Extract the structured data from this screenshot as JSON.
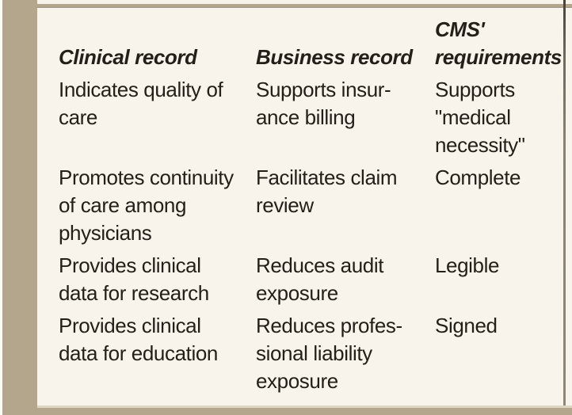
{
  "colors": {
    "page_background": "#f8f4eb",
    "margin_band": "#b3a68c",
    "text": "#242019",
    "page_edge_line": "#6e675c",
    "bottom_light_rule": "#ded6c5"
  },
  "table": {
    "headers": [
      {
        "lines": [
          "Clinical record"
        ]
      },
      {
        "lines": [
          "Business record"
        ]
      },
      {
        "lines": [
          "CMS'",
          "requirements"
        ]
      }
    ],
    "rows": [
      {
        "clinical": [
          "Indicates quality of",
          "care"
        ],
        "business": [
          "Supports insur-",
          "ance billing"
        ],
        "cms": [
          "Supports",
          "\"medical",
          "necessity\""
        ]
      },
      {
        "clinical": [
          "Promotes continuity",
          "of care among",
          "physicians"
        ],
        "business": [
          "Facilitates claim",
          "review"
        ],
        "cms": [
          "Complete"
        ]
      },
      {
        "clinical": [
          "Provides clinical",
          "data for research"
        ],
        "business": [
          "Reduces audit",
          "exposure"
        ],
        "cms": [
          "Legible"
        ]
      },
      {
        "clinical": [
          "Provides clinical",
          "data for education"
        ],
        "business": [
          "Reduces profes-",
          "sional liability",
          "exposure"
        ],
        "cms": [
          "Signed"
        ]
      }
    ]
  }
}
